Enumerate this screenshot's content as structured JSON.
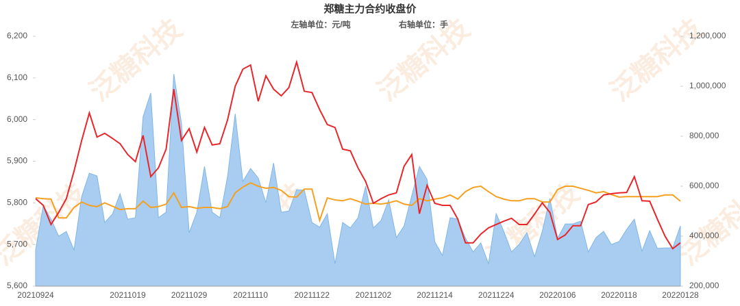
{
  "chart_data": {
    "type": "line",
    "title": "郑糖主力合约收盘价",
    "subtitle_left": "左轴单位：元/吨",
    "subtitle_right": "右轴单位：手",
    "watermark": "泛糖科技",
    "categories": [
      "20210924",
      null,
      null,
      null,
      null,
      null,
      null,
      null,
      null,
      null,
      null,
      null,
      "20211019",
      null,
      null,
      null,
      null,
      null,
      null,
      null,
      "20211029",
      null,
      null,
      null,
      null,
      null,
      null,
      null,
      "20211110",
      null,
      null,
      null,
      null,
      null,
      null,
      null,
      "20211122",
      null,
      null,
      null,
      null,
      null,
      null,
      null,
      "20211202",
      null,
      null,
      null,
      null,
      null,
      null,
      null,
      "20211214",
      null,
      null,
      null,
      null,
      null,
      null,
      null,
      "20211224",
      null,
      null,
      null,
      null,
      null,
      null,
      null,
      "20220106",
      null,
      null,
      null,
      null,
      null,
      null,
      null,
      "20220118",
      null,
      null,
      null,
      null,
      null,
      null,
      null,
      "20220128"
    ],
    "ylim": [
      5600,
      6200
    ],
    "yticks": [
      {
        "value": 5600,
        "label": "5,600"
      },
      {
        "value": 5700,
        "label": "5,700"
      },
      {
        "value": 5800,
        "label": "5,800"
      },
      {
        "value": 5900,
        "label": "5,900"
      },
      {
        "value": 6000,
        "label": "6,000"
      },
      {
        "value": 6100,
        "label": "6,100"
      },
      {
        "value": 6200,
        "label": "6,200"
      }
    ],
    "y2lim": [
      200000,
      1200000
    ],
    "y2ticks": [
      {
        "value": 200000,
        "label": "200,000"
      },
      {
        "value": 400000,
        "label": "400,000"
      },
      {
        "value": 600000,
        "label": "600,000"
      },
      {
        "value": 800000,
        "label": "800,000"
      },
      {
        "value": 1000000,
        "label": "1,000,000"
      },
      {
        "value": 1200000,
        "label": "1,200,000"
      }
    ],
    "series": [
      {
        "type": "area",
        "axis": "y2",
        "color": "#a9cdf0",
        "values": [
          345000,
          523000,
          468000,
          400000,
          419000,
          345000,
          559000,
          652000,
          641000,
          455000,
          488000,
          570000,
          468000,
          474000,
          879000,
          973000,
          474000,
          496000,
          1049000,
          852000,
          414000,
          496000,
          679000,
          496000,
          474000,
          638000,
          890000,
          619000,
          671000,
          633000,
          534000,
          693000,
          496000,
          501000,
          586000,
          584000,
          455000,
          436000,
          490000,
          290000,
          455000,
          433000,
          474000,
          600000,
          433000,
          463000,
          545000,
          394000,
          441000,
          562000,
          679000,
          627000,
          378000,
          323000,
          474000,
          468000,
          392000,
          337000,
          373000,
          290000,
          490000,
          419000,
          337000,
          367000,
          414000,
          318000,
          419000,
          551000,
          392000,
          449000,
          449000,
          460000,
          337000,
          394000,
          419000,
          367000,
          378000,
          427000,
          468000,
          340000,
          422000,
          351000,
          353000,
          353000,
          441000
        ]
      },
      {
        "type": "line",
        "color": "#f5a020",
        "values": [
          5812,
          5810,
          5809,
          5764,
          5764,
          5789,
          5802,
          5794,
          5791,
          5800,
          5792,
          5784,
          5786,
          5786,
          5804,
          5789,
          5791,
          5797,
          5824,
          5789,
          5791,
          5787,
          5789,
          5789,
          5786,
          5791,
          5824,
          5838,
          5848,
          5840,
          5835,
          5837,
          5830,
          5815,
          5814,
          5833,
          5833,
          5758,
          5812,
          5807,
          5805,
          5810,
          5804,
          5797,
          5799,
          5797,
          5800,
          5805,
          5797,
          5794,
          5810,
          5805,
          5809,
          5812,
          5819,
          5809,
          5827,
          5837,
          5840,
          5827,
          5815,
          5809,
          5805,
          5805,
          5810,
          5810,
          5802,
          5802,
          5832,
          5840,
          5840,
          5835,
          5830,
          5824,
          5827,
          5820,
          5814,
          5815,
          5815,
          5815,
          5815,
          5815,
          5819,
          5819,
          5804
        ]
      },
      {
        "type": "line",
        "color": "#e8262a",
        "values": [
          5810,
          5794,
          5748,
          5777,
          5810,
          5876,
          5950,
          6016,
          5958,
          5967,
          5955,
          5942,
          5916,
          5899,
          5962,
          5863,
          5884,
          5929,
          6073,
          5950,
          5978,
          5922,
          5981,
          5939,
          5942,
          5999,
          6080,
          6121,
          6131,
          6044,
          6105,
          6073,
          6057,
          6077,
          6138,
          6068,
          6065,
          6024,
          5988,
          5981,
          5929,
          5925,
          5884,
          5851,
          5799,
          5810,
          5819,
          5824,
          5888,
          5916,
          5774,
          5842,
          5799,
          5794,
          5794,
          5761,
          5704,
          5704,
          5725,
          5740,
          5748,
          5756,
          5763,
          5748,
          5748,
          5773,
          5800,
          5777,
          5712,
          5723,
          5745,
          5745,
          5796,
          5802,
          5819,
          5822,
          5824,
          5825,
          5863,
          5805,
          5804,
          5761,
          5720,
          5690,
          5704
        ]
      }
    ]
  }
}
